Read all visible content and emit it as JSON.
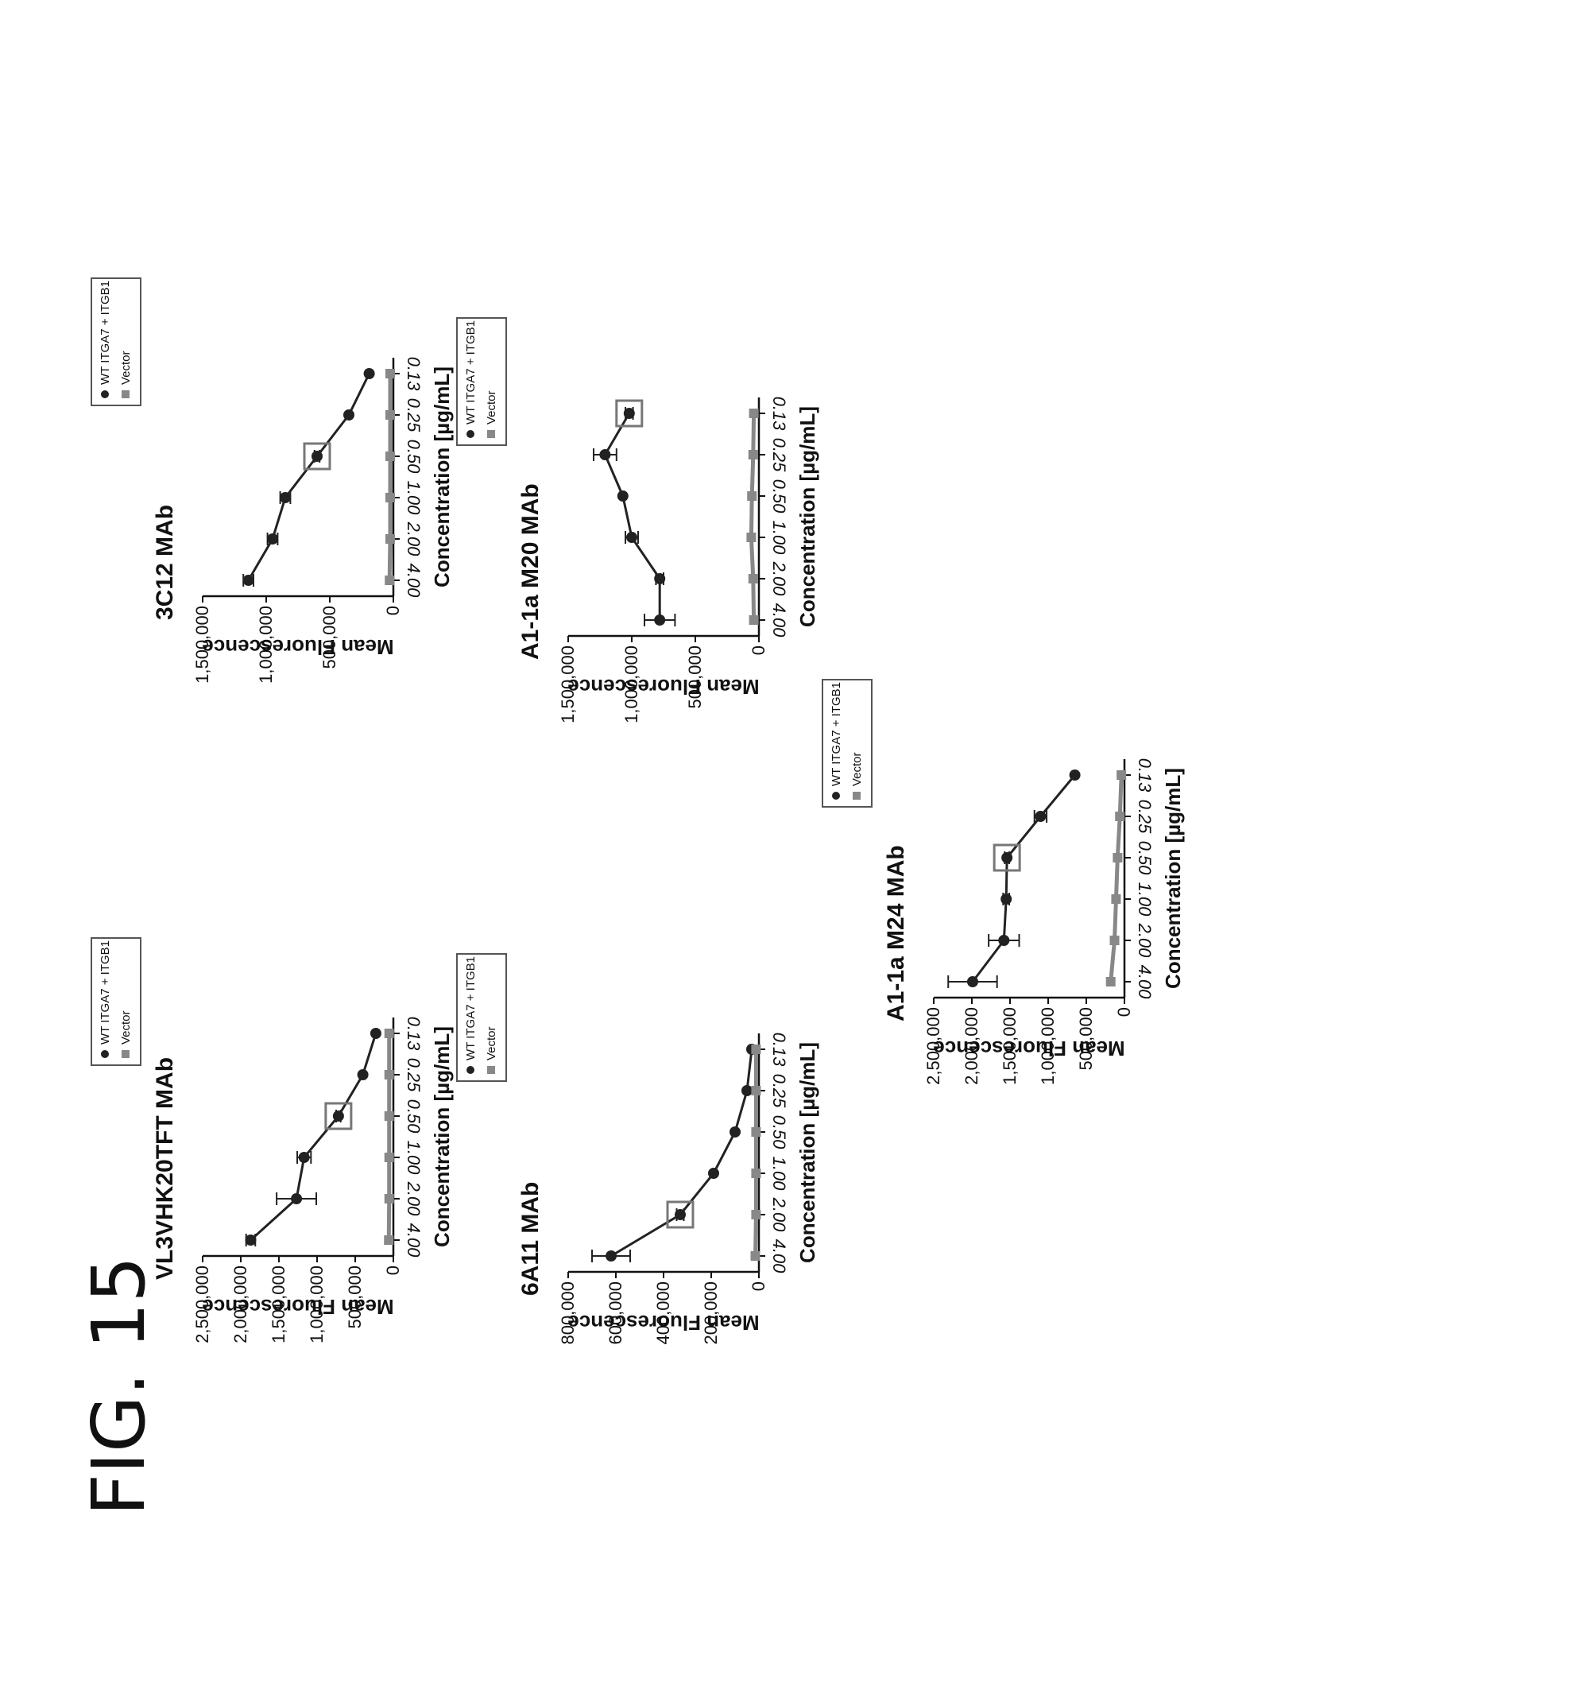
{
  "figure_label": "FIG. 15",
  "colors": {
    "wt": "#222222",
    "vector": "#888888",
    "highlight": "#777777"
  },
  "chart_data": [
    {
      "id": "vl3",
      "type": "line",
      "title": "VL3VHK20TFT MAb",
      "xlabel": "Concentration [µg/mL]",
      "ylabel": "Mean Fluorescence",
      "categories": [
        "4.00",
        "2.00",
        "1.00",
        "0.50",
        "0.25",
        "0.13"
      ],
      "yticks": [
        "0",
        "500,000",
        "1,000,000",
        "1,500,000",
        "2,000,000",
        "2,500,000"
      ],
      "ylim": [
        0,
        2500000
      ],
      "legend": "top-right",
      "highlight_index": 3,
      "series": [
        {
          "name": "WT ITGA7 + ITGB1",
          "values": [
            1870000,
            1270000,
            1170000,
            720000,
            400000,
            230000
          ],
          "errors": [
            60000,
            260000,
            90000,
            30000,
            0,
            0
          ]
        },
        {
          "name": "Vector",
          "values": [
            60000,
            55000,
            55000,
            55000,
            55000,
            55000
          ],
          "errors": [
            0,
            0,
            0,
            0,
            0,
            0
          ]
        }
      ]
    },
    {
      "id": "3c12",
      "type": "line",
      "title": "3C12 MAb",
      "xlabel": "Concentration [µg/mL]",
      "ylabel": "Mean Fluorescence",
      "categories": [
        "4.00",
        "2.00",
        "1.00",
        "0.50",
        "0.25",
        "0.13"
      ],
      "yticks": [
        "0",
        "500,000",
        "1,000,000",
        "1,500,000"
      ],
      "ylim": [
        0,
        1500000
      ],
      "legend": "top-right",
      "highlight_index": 3,
      "series": [
        {
          "name": "WT ITGA7 + ITGB1",
          "values": [
            1140000,
            950000,
            850000,
            600000,
            350000,
            190000
          ],
          "errors": [
            40000,
            40000,
            40000,
            20000,
            0,
            0
          ]
        },
        {
          "name": "Vector",
          "values": [
            30000,
            25000,
            25000,
            25000,
            25000,
            25000
          ],
          "errors": [
            0,
            0,
            0,
            0,
            0,
            0
          ]
        }
      ]
    },
    {
      "id": "6a11",
      "type": "line",
      "title": "6A11 MAb",
      "xlabel": "Concentration [µg/mL]",
      "ylabel": "Mean Fluorescence",
      "categories": [
        "4.00",
        "2.00",
        "1.00",
        "0.50",
        "0.25",
        "0.13"
      ],
      "yticks": [
        "0",
        "200,000",
        "400,000",
        "600,000",
        "800,000"
      ],
      "ylim": [
        0,
        800000
      ],
      "legend": "top-right",
      "highlight_index": 1,
      "series": [
        {
          "name": "WT ITGA7 + ITGB1",
          "values": [
            620000,
            330000,
            190000,
            100000,
            50000,
            30000
          ],
          "errors": [
            80000,
            15000,
            0,
            0,
            0,
            0
          ]
        },
        {
          "name": "Vector",
          "values": [
            15000,
            12000,
            12000,
            12000,
            12000,
            12000
          ],
          "errors": [
            0,
            0,
            0,
            0,
            0,
            0
          ]
        }
      ]
    },
    {
      "id": "m20",
      "type": "line",
      "title": "A1-1a M20 MAb",
      "xlabel": "Concentration [µg/mL]",
      "ylabel": "Mean Fluorescence",
      "categories": [
        "4.00",
        "2.00",
        "1.00",
        "0.50",
        "0.25",
        "0.13"
      ],
      "yticks": [
        "0",
        "500,000",
        "1,000,000",
        "1,500,000"
      ],
      "ylim": [
        0,
        1500000
      ],
      "legend": "top-right",
      "highlight_index": 5,
      "series": [
        {
          "name": "WT ITGA7 + ITGB1",
          "values": [
            780000,
            780000,
            1000000,
            1070000,
            1210000,
            1020000
          ],
          "errors": [
            120000,
            30000,
            50000,
            0,
            90000,
            30000
          ]
        },
        {
          "name": "Vector",
          "values": [
            40000,
            45000,
            60000,
            55000,
            45000,
            40000
          ],
          "errors": [
            0,
            0,
            0,
            0,
            0,
            0
          ]
        }
      ]
    },
    {
      "id": "m24",
      "type": "line",
      "title": "A1-1a M24 MAb",
      "xlabel": "Concentration [µg/mL]",
      "ylabel": "Mean Fluorescence",
      "categories": [
        "4.00",
        "2.00",
        "1.00",
        "0.50",
        "0.25",
        "0.13"
      ],
      "yticks": [
        "0",
        "500,000",
        "1,000,000",
        "1,500,000",
        "2,000,000",
        "2,500,000"
      ],
      "ylim": [
        0,
        2500000
      ],
      "legend": "top-right",
      "highlight_index": 3,
      "series": [
        {
          "name": "WT ITGA7 + ITGB1",
          "values": [
            1990000,
            1580000,
            1550000,
            1540000,
            1100000,
            650000
          ],
          "errors": [
            320000,
            200000,
            40000,
            30000,
            80000,
            0
          ]
        },
        {
          "name": "Vector",
          "values": [
            180000,
            130000,
            110000,
            90000,
            60000,
            40000
          ],
          "errors": [
            0,
            0,
            0,
            0,
            0,
            0
          ]
        }
      ]
    }
  ]
}
